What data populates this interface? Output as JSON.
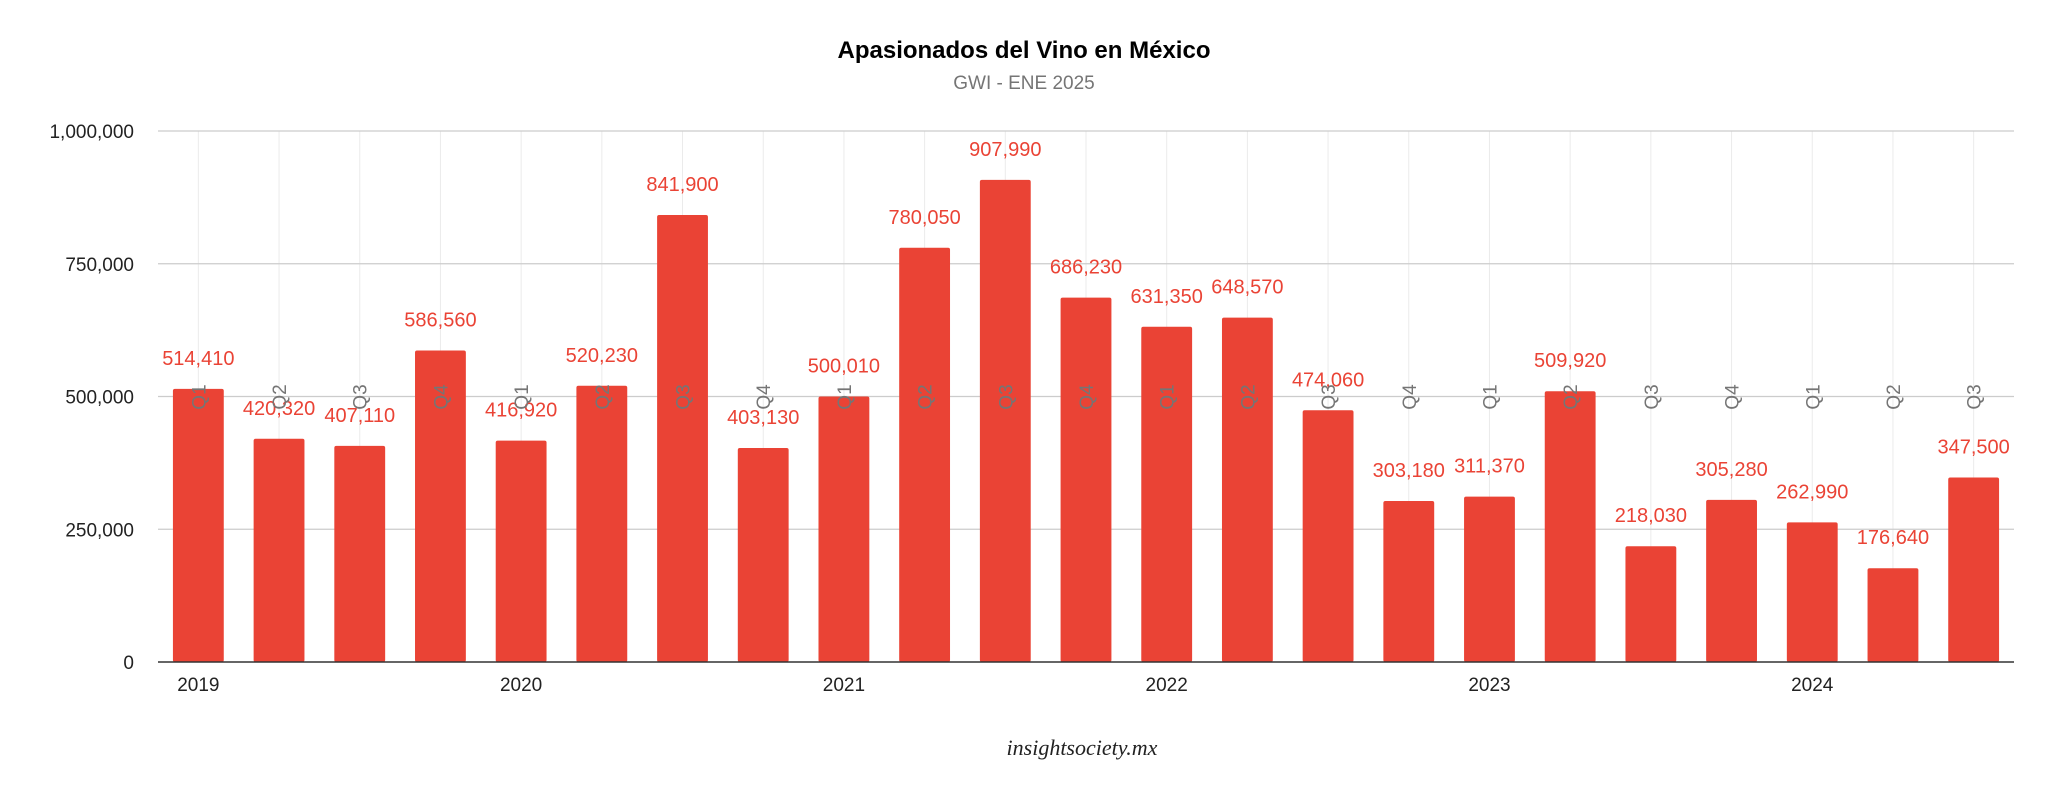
{
  "chart_data": {
    "type": "bar",
    "title": "Apasionados del Vino en México",
    "subtitle": "GWI - ENE 2025",
    "xlabel": "",
    "ylabel": "",
    "ylim": [
      0,
      1000000
    ],
    "y_ticks": [
      "0",
      "250,000",
      "500,000",
      "750,000",
      "1,000,000"
    ],
    "y_tick_values": [
      0,
      250000,
      500000,
      750000,
      1000000
    ],
    "grid": true,
    "bar_color": "#ea4335",
    "label_color": "#ea4335",
    "categories": [
      "Q1",
      "Q2",
      "Q3",
      "Q4",
      "Q1",
      "Q2",
      "Q3",
      "Q4",
      "Q1",
      "Q2",
      "Q3",
      "Q4",
      "Q1",
      "Q2",
      "Q3",
      "Q4",
      "Q1",
      "Q2",
      "Q3",
      "Q4",
      "Q1",
      "Q2",
      "Q3"
    ],
    "years": [
      {
        "label": "2019",
        "start_index": 0
      },
      {
        "label": "2020",
        "start_index": 4
      },
      {
        "label": "2021",
        "start_index": 8
      },
      {
        "label": "2022",
        "start_index": 12
      },
      {
        "label": "2023",
        "start_index": 16
      },
      {
        "label": "2024",
        "start_index": 20
      }
    ],
    "values": [
      514410,
      420320,
      407110,
      586560,
      416920,
      520230,
      841900,
      403130,
      500010,
      780050,
      907990,
      686230,
      631350,
      648570,
      474060,
      303180,
      311370,
      509920,
      218030,
      305280,
      262990,
      176640,
      347500
    ],
    "data_labels": [
      "514,410",
      "420,320",
      "407,110",
      "586,560",
      "416,920",
      "520,230",
      "841,900",
      "403,130",
      "500,010",
      "780,050",
      "907,990",
      "686,230",
      "631,350",
      "648,570",
      "474,060",
      "303,180",
      "311,370",
      "509,920",
      "218,030",
      "305,280",
      "262,990",
      "176,640",
      "347,500"
    ]
  },
  "watermark": "insightsociety.mx"
}
